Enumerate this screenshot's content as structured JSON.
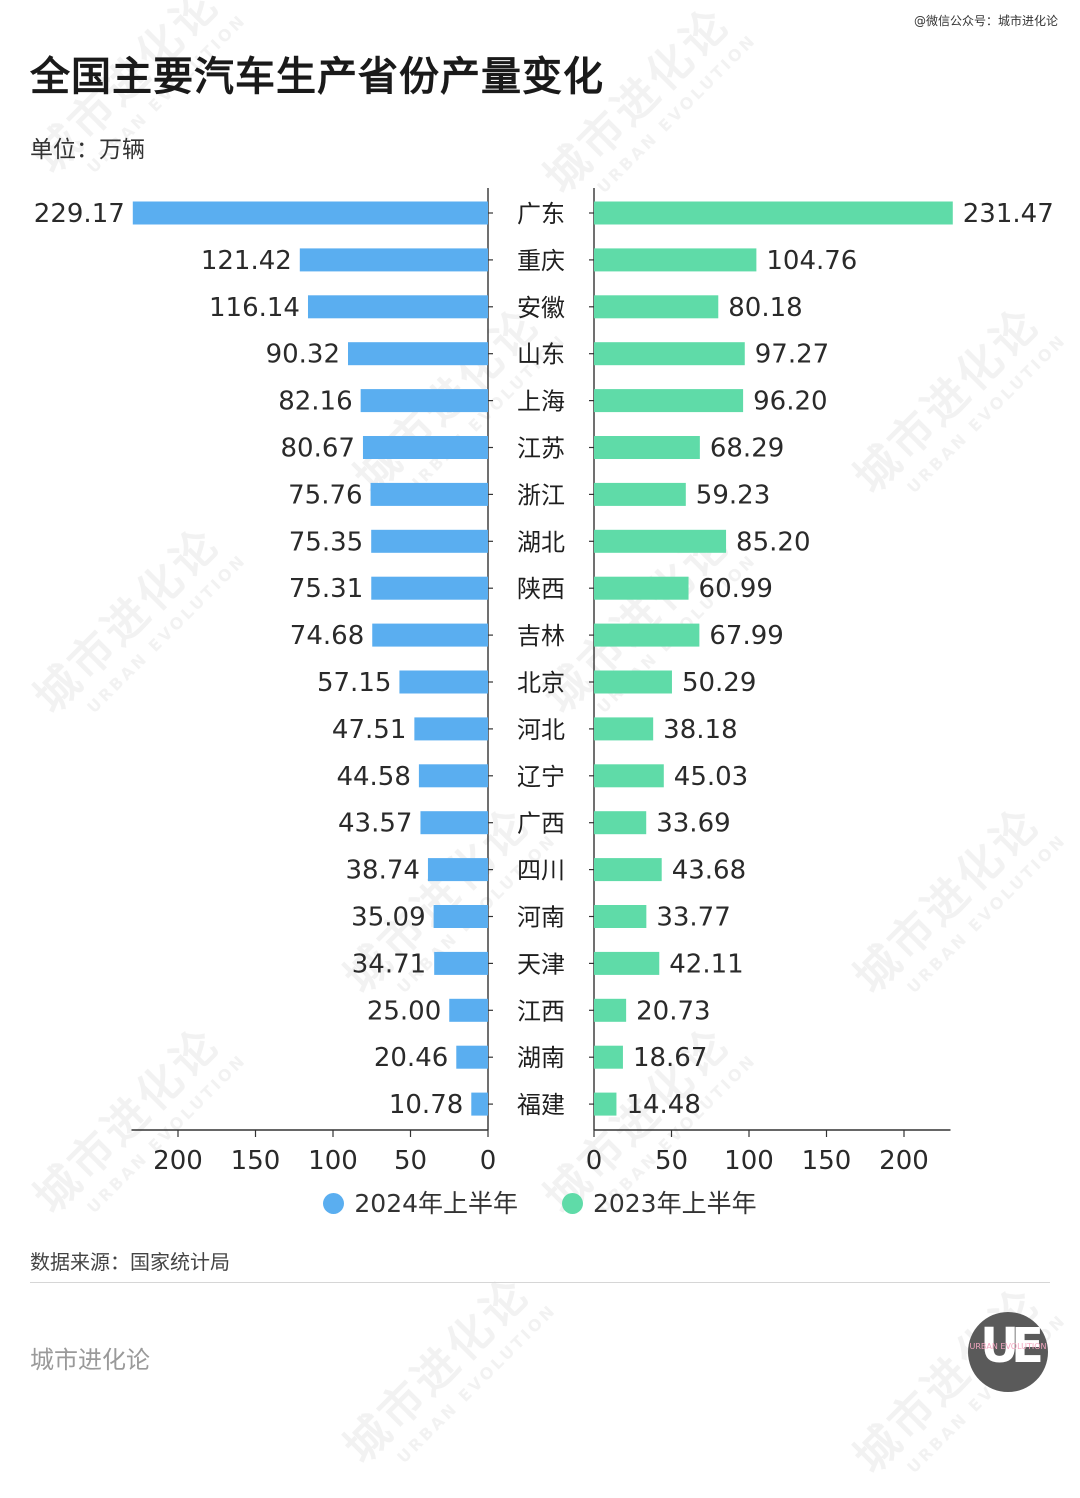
{
  "header": {
    "wechat_credit": "@微信公众号：城市进化论",
    "title": "全国主要汽车生产省份产量变化",
    "unit": "单位：万辆"
  },
  "chart_data": {
    "type": "bar",
    "orientation": "horizontal-butterfly",
    "title": "全国主要汽车生产省份产量变化",
    "categories": [
      "广东",
      "重庆",
      "安徽",
      "山东",
      "上海",
      "江苏",
      "浙江",
      "湖北",
      "陕西",
      "吉林",
      "北京",
      "河北",
      "辽宁",
      "广西",
      "四川",
      "河南",
      "天津",
      "江西",
      "湖南",
      "福建"
    ],
    "series": [
      {
        "name": "2024年上半年",
        "side": "left",
        "color": "#5aaef0",
        "values": [
          229.17,
          121.42,
          116.14,
          90.32,
          82.16,
          80.67,
          75.76,
          75.35,
          75.31,
          74.68,
          57.15,
          47.51,
          44.58,
          43.57,
          38.74,
          35.09,
          34.71,
          25.0,
          20.46,
          10.78
        ],
        "labels": [
          "229.17",
          "121.42",
          "116.14",
          "90.32",
          "82.16",
          "80.67",
          "75.76",
          "75.35",
          "75.31",
          "74.68",
          "57.15",
          "47.51",
          "44.58",
          "43.57",
          "38.74",
          "35.09",
          "34.71",
          "25.00",
          "20.46",
          "10.78"
        ]
      },
      {
        "name": "2023年上半年",
        "side": "right",
        "color": "#5fdba8",
        "values": [
          231.47,
          104.76,
          80.18,
          97.27,
          96.2,
          68.29,
          59.23,
          85.2,
          60.99,
          67.99,
          50.29,
          38.18,
          45.03,
          33.69,
          43.68,
          33.77,
          42.11,
          20.73,
          18.67,
          14.48
        ],
        "labels": [
          "231.47",
          "104.76",
          "80.18",
          "97.27",
          "96.20",
          "68.29",
          "59.23",
          "85.20",
          "60.99",
          "67.99",
          "50.29",
          "38.18",
          "45.03",
          "33.69",
          "43.68",
          "33.77",
          "42.11",
          "20.73",
          "18.67",
          "14.48"
        ]
      }
    ],
    "xlim": [
      0,
      230
    ],
    "ticks": [
      0,
      50,
      100,
      150,
      200
    ],
    "tick_labels": [
      "0",
      "50",
      "100",
      "150",
      "200"
    ],
    "xlabel": "",
    "ylabel": "单位：万辆",
    "grid": false,
    "legend_position": "bottom-center"
  },
  "footer": {
    "source": "数据来源：国家统计局",
    "brand": "城市进化论",
    "logo_letters": "UE",
    "logo_text": "URBAN EVOLUTION"
  },
  "watermark": {
    "text_cn": "城市进化论",
    "text_en": "URBAN EVOLUTION"
  },
  "colors": {
    "series_2024": "#5aaef0",
    "series_2023": "#5fdba8",
    "axis": "#333333",
    "text": "#1f1f1f"
  }
}
